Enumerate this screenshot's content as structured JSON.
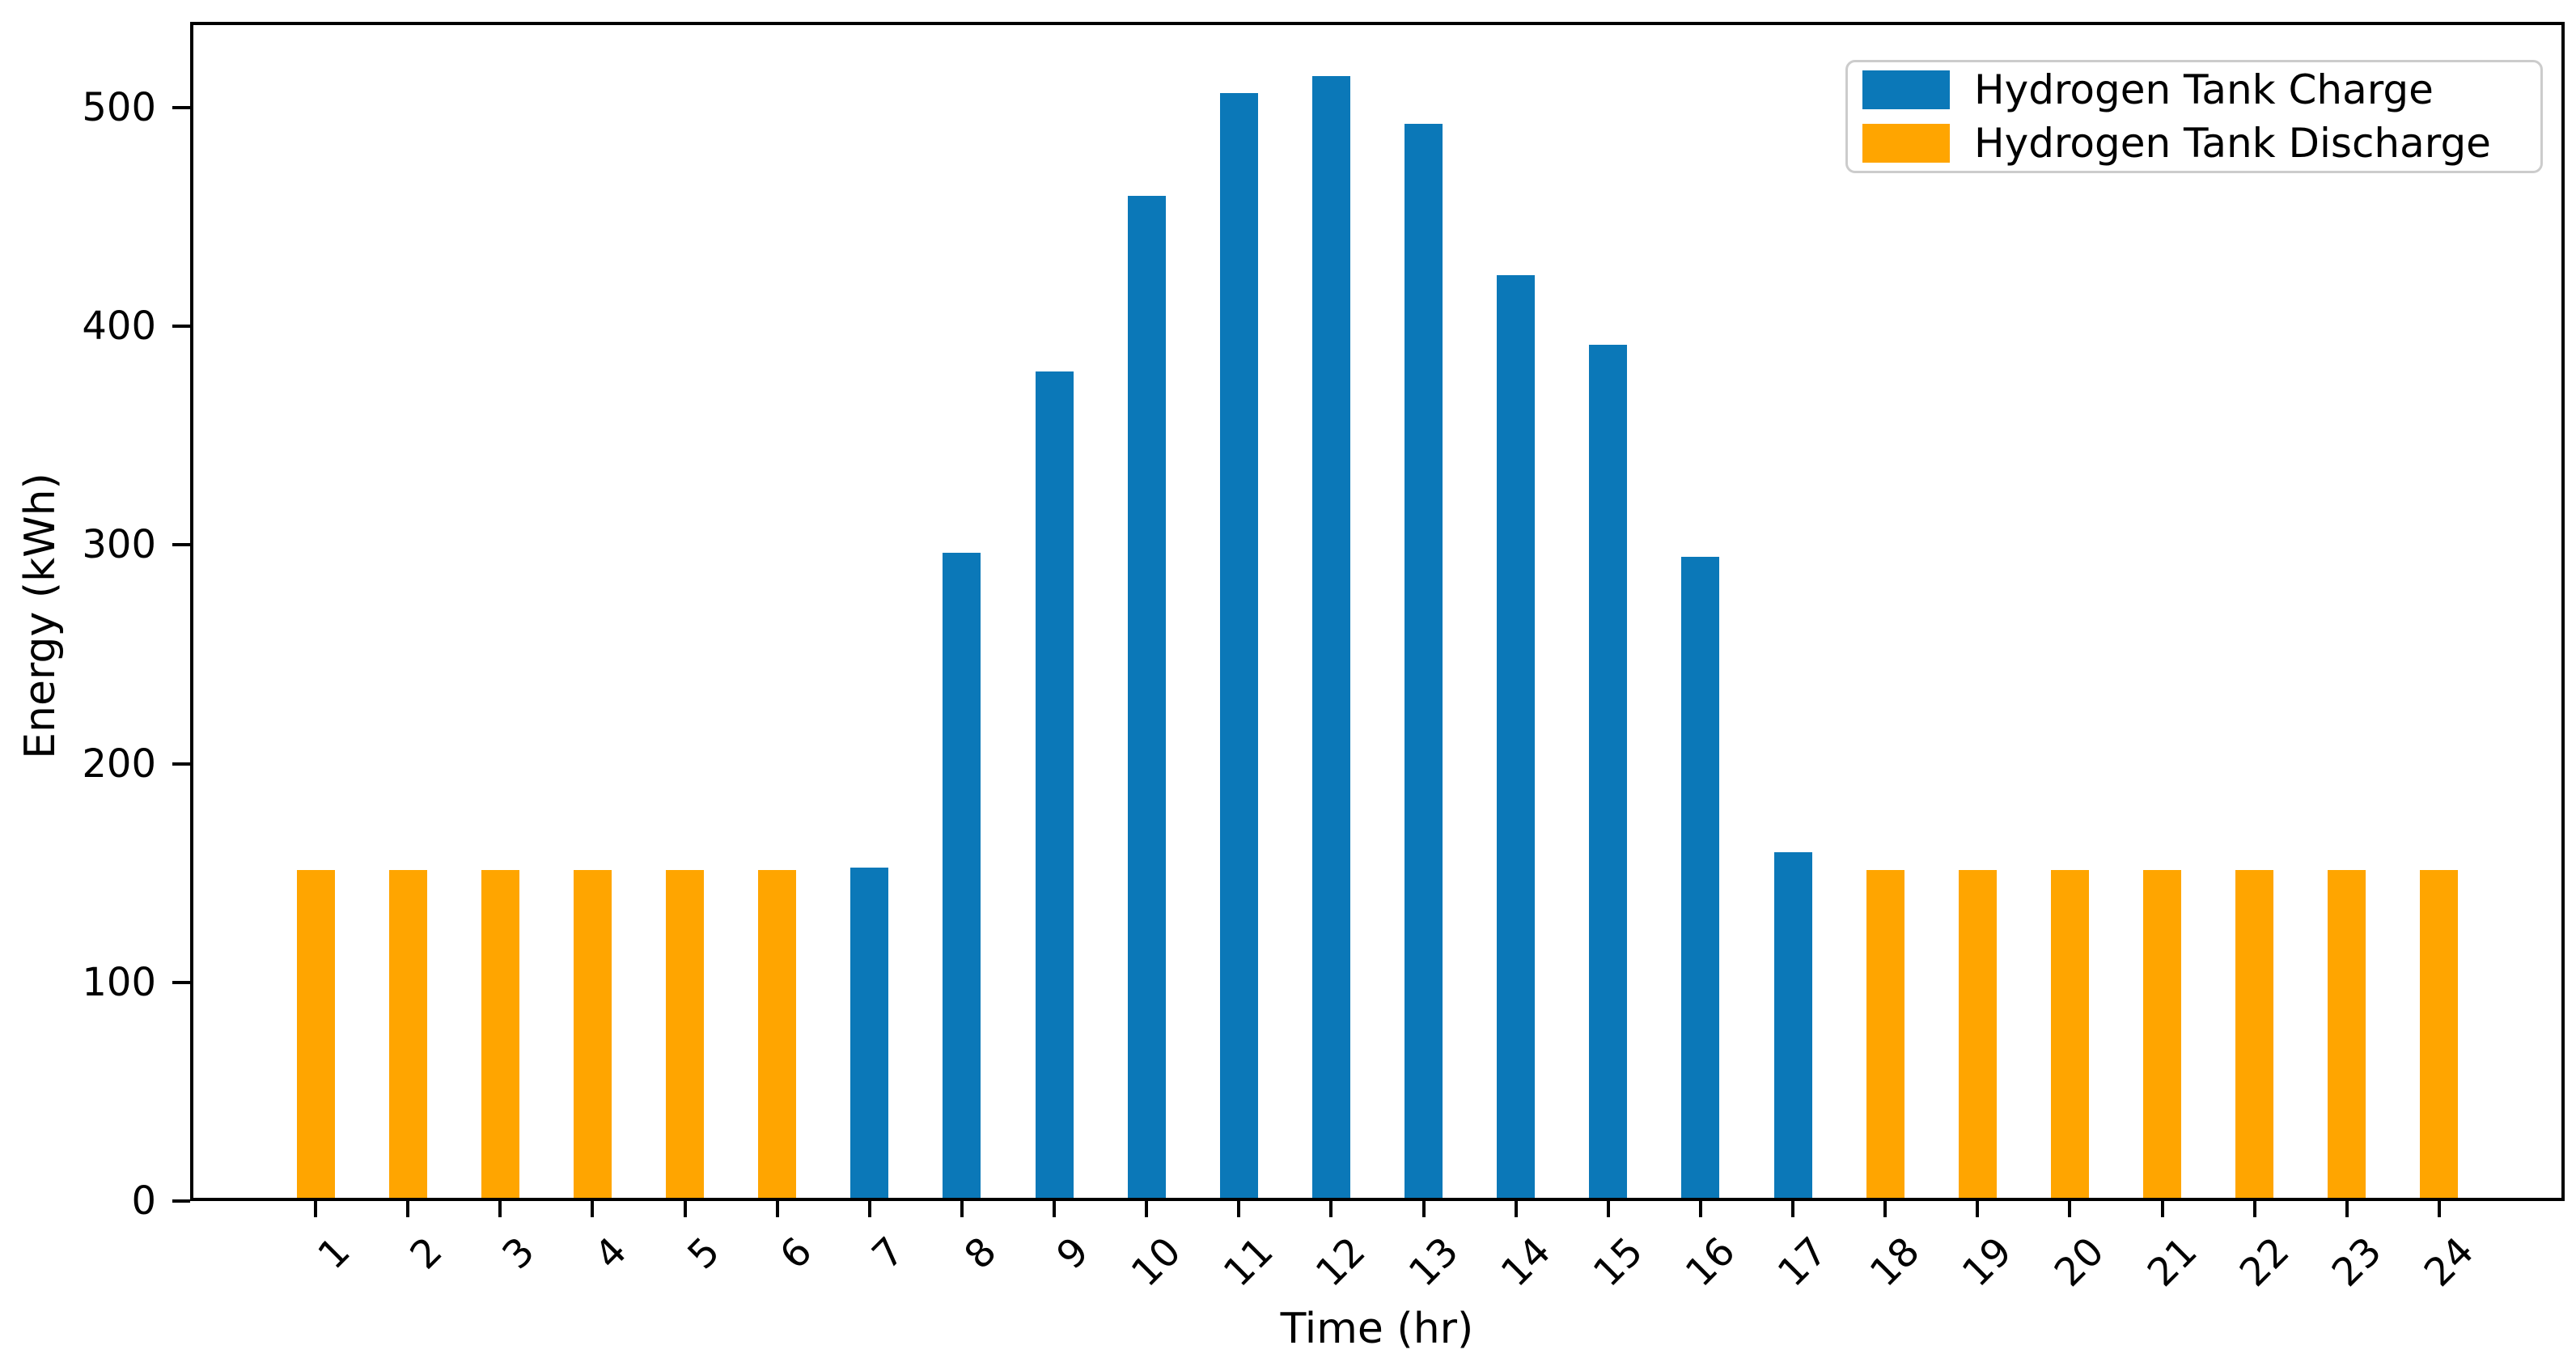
{
  "figure": {
    "background": "#ffffff",
    "spine_color": "#000000"
  },
  "chart_data": {
    "type": "bar",
    "title": "",
    "xlabel": "Time (hr)",
    "ylabel": "Energy (kWh)",
    "categories": [
      1,
      2,
      3,
      4,
      5,
      6,
      7,
      8,
      9,
      10,
      11,
      12,
      13,
      14,
      15,
      16,
      17,
      18,
      19,
      20,
      21,
      22,
      23,
      24
    ],
    "series": [
      {
        "name": "Hydrogen Tank Charge",
        "color": "#0b78b8",
        "values": [
          null,
          null,
          null,
          null,
          null,
          null,
          151,
          295,
          378,
          458,
          505,
          513,
          491,
          422,
          390,
          293,
          158,
          null,
          null,
          null,
          null,
          null,
          null,
          null
        ]
      },
      {
        "name": "Hydrogen Tank Discharge",
        "color": "#ffa500",
        "values": [
          150,
          150,
          150,
          150,
          150,
          150,
          null,
          null,
          null,
          null,
          null,
          null,
          null,
          null,
          null,
          null,
          null,
          150,
          150,
          150,
          150,
          150,
          150,
          150
        ]
      }
    ],
    "ylim": [
      0,
      539
    ],
    "yticks": [
      0,
      100,
      200,
      300,
      400,
      500
    ],
    "xticks": [
      1,
      2,
      3,
      4,
      5,
      6,
      7,
      8,
      9,
      10,
      11,
      12,
      13,
      14,
      15,
      16,
      17,
      18,
      19,
      20,
      21,
      22,
      23,
      24
    ],
    "x_tick_rotation": 45,
    "grid": false,
    "legend_position": "upper right"
  }
}
